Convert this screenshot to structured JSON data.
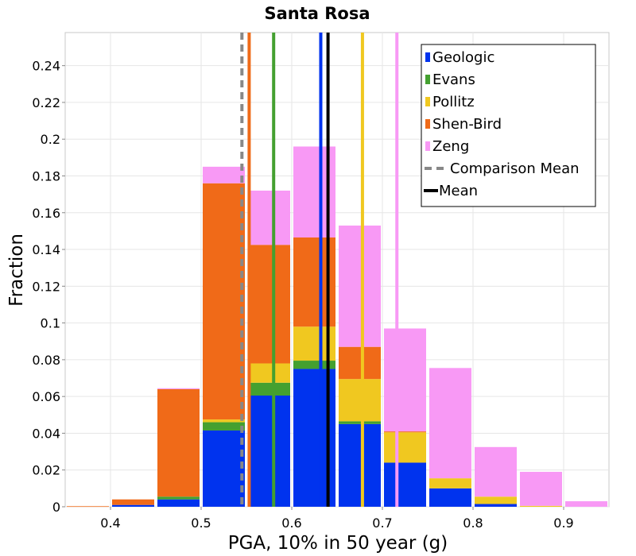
{
  "chart_data": {
    "type": "bar",
    "stacked": true,
    "title": "Santa Rosa",
    "xlabel": "PGA, 10% in 50 year (g)",
    "ylabel": "Fraction",
    "xlim": [
      0.35,
      0.95
    ],
    "ylim": [
      0,
      0.258
    ],
    "bin_width": 0.05,
    "grid": true,
    "legend_position": "top-right",
    "x_ticks": [
      {
        "value": 0.4,
        "label": "0.4"
      },
      {
        "value": 0.5,
        "label": "0.5"
      },
      {
        "value": 0.6,
        "label": "0.6"
      },
      {
        "value": 0.7,
        "label": "0.7"
      },
      {
        "value": 0.8,
        "label": "0.8"
      },
      {
        "value": 0.9,
        "label": "0.9"
      }
    ],
    "y_ticks": [
      {
        "value": 0,
        "label": "0"
      },
      {
        "value": 0.02,
        "label": "0.02"
      },
      {
        "value": 0.04,
        "label": "0.04"
      },
      {
        "value": 0.06,
        "label": "0.06"
      },
      {
        "value": 0.08,
        "label": "0.08"
      },
      {
        "value": 0.1,
        "label": "0.1"
      },
      {
        "value": 0.12,
        "label": "0.12"
      },
      {
        "value": 0.14,
        "label": "0.14"
      },
      {
        "value": 0.16,
        "label": "0.16"
      },
      {
        "value": 0.18,
        "label": "0.18"
      },
      {
        "value": 0.2,
        "label": "0.2"
      },
      {
        "value": 0.22,
        "label": "0.22"
      },
      {
        "value": 0.24,
        "label": "0.24"
      }
    ],
    "bin_centers": [
      0.375,
      0.425,
      0.475,
      0.525,
      0.575,
      0.625,
      0.675,
      0.725,
      0.775,
      0.825,
      0.875,
      0.925
    ],
    "series": [
      {
        "name": "Geologic",
        "color": "#0033ee",
        "values": [
          0,
          0.001,
          0.004,
          0.0415,
          0.0605,
          0.075,
          0.045,
          0.024,
          0.01,
          0.0015,
          0,
          0
        ]
      },
      {
        "name": "Evans",
        "color": "#44a030",
        "values": [
          0,
          0,
          0.0015,
          0.0045,
          0.007,
          0.0045,
          0.0015,
          0,
          0,
          0,
          0,
          0
        ]
      },
      {
        "name": "Pollitz",
        "color": "#f0c820",
        "values": [
          0,
          0,
          0,
          0.0015,
          0.0105,
          0.0185,
          0.023,
          0.0165,
          0.0055,
          0.004,
          0.0005,
          0
        ]
      },
      {
        "name": "Shen-Bird",
        "color": "#f06a18",
        "values": [
          0.0003,
          0.003,
          0.0585,
          0.1285,
          0.0645,
          0.0485,
          0.0175,
          0.0005,
          0,
          0,
          0,
          0
        ]
      },
      {
        "name": "Zeng",
        "color": "#f899f5",
        "values": [
          0,
          0,
          0.0005,
          0.009,
          0.0295,
          0.0495,
          0.066,
          0.056,
          0.06,
          0.027,
          0.0185,
          0.003
        ]
      }
    ],
    "vertical_lines": [
      {
        "name": "Comparison Mean",
        "x": 0.545,
        "color": "#888888",
        "style": "dashed"
      },
      {
        "name": "Shen-Bird mean",
        "x": 0.553,
        "color": "#f06a18",
        "style": "solid"
      },
      {
        "name": "Evans mean",
        "x": 0.58,
        "color": "#44a030",
        "style": "solid"
      },
      {
        "name": "Geologic mean",
        "x": 0.632,
        "color": "#0033ee",
        "style": "solid"
      },
      {
        "name": "Mean",
        "x": 0.64,
        "color": "#000000",
        "style": "solid"
      },
      {
        "name": "Pollitz mean",
        "x": 0.678,
        "color": "#f0c820",
        "style": "solid"
      },
      {
        "name": "Zeng mean",
        "x": 0.716,
        "color": "#f899f5",
        "style": "solid"
      }
    ],
    "legend": [
      {
        "label": "Geologic",
        "kind": "box",
        "color": "#0033ee"
      },
      {
        "label": "Evans",
        "kind": "box",
        "color": "#44a030"
      },
      {
        "label": "Pollitz",
        "kind": "box",
        "color": "#f0c820"
      },
      {
        "label": "Shen-Bird",
        "kind": "box",
        "color": "#f06a18"
      },
      {
        "label": "Zeng",
        "kind": "box",
        "color": "#f899f5"
      },
      {
        "label": "Comparison Mean",
        "kind": "dashed",
        "color": "#888888"
      },
      {
        "label": "Mean",
        "kind": "line",
        "color": "#000000"
      }
    ]
  }
}
